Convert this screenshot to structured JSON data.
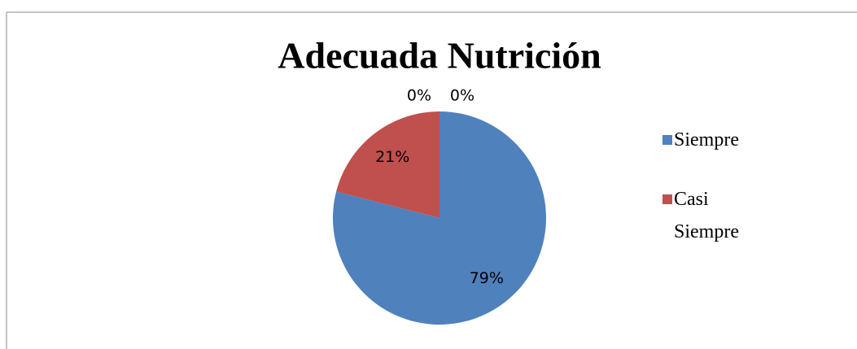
{
  "chart_data": {
    "type": "pie",
    "title": "Adecuada Nutrición",
    "categories": [
      "Siempre",
      "Casi Siempre",
      null,
      null
    ],
    "values": [
      79,
      21,
      0,
      0
    ],
    "value_labels": [
      "79%",
      "21%",
      "0%",
      "0%"
    ],
    "colors": [
      "#4f81bd",
      "#c0504d",
      "#9bbb59",
      "#8064a2"
    ],
    "legend": "right"
  }
}
